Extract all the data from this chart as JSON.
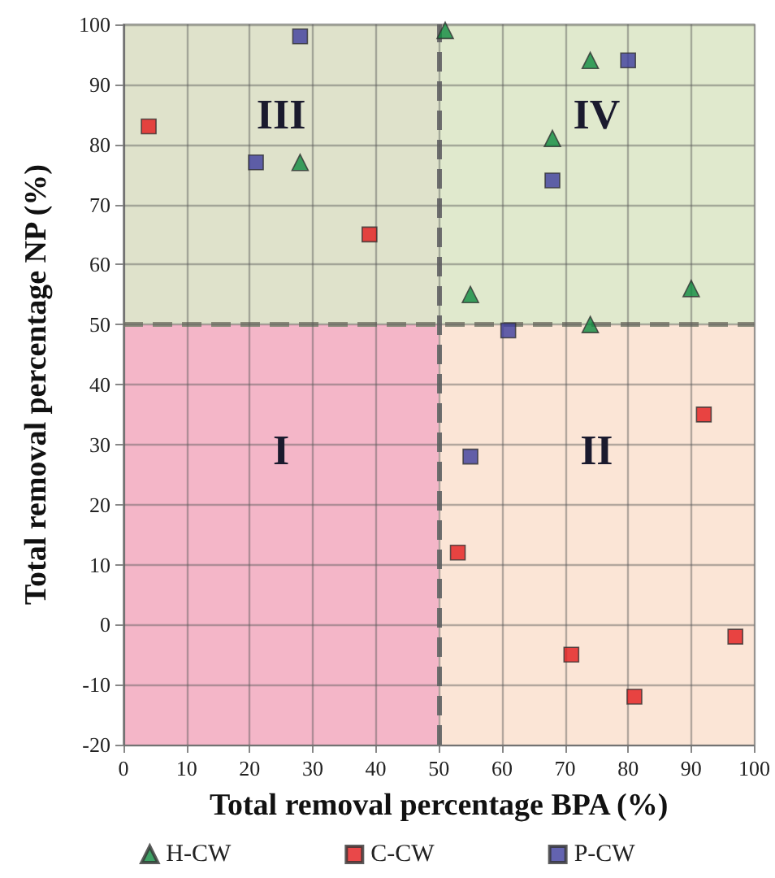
{
  "chart_data": {
    "type": "scatter",
    "xlabel": "Total removal percentage BPA (%)",
    "ylabel": "Total removal percentage NP (%)",
    "xlim": [
      0,
      100
    ],
    "xticks": [
      0,
      10,
      20,
      30,
      40,
      50,
      60,
      70,
      80,
      90,
      100
    ],
    "ylim": [
      -20,
      100
    ],
    "yticks": [
      -20,
      -10,
      0,
      10,
      20,
      30,
      40,
      50,
      60,
      70,
      80,
      90,
      100
    ],
    "grid": true,
    "legend": "bottom",
    "series": [
      {
        "name": "H-CW",
        "color": "#0e8a3e",
        "marker": "triangle",
        "x": [
          51,
          74,
          68,
          55,
          74,
          90,
          28
        ],
        "values": [
          99,
          94,
          81,
          55,
          50,
          56,
          77
        ]
      },
      {
        "name": "C-CW",
        "color": "#e31a1c",
        "marker": "square",
        "x": [
          4,
          39,
          92,
          53,
          71,
          81,
          97
        ],
        "values": [
          83,
          65,
          35,
          12,
          -5,
          -12,
          -2
        ]
      },
      {
        "name": "P-CW",
        "color": "#3c3c9c",
        "marker": "square",
        "x": [
          28,
          21,
          80,
          68,
          61,
          55
        ],
        "values": [
          98,
          77,
          94,
          74,
          49,
          28
        ]
      }
    ],
    "ref_lines": [
      {
        "axis": "x",
        "value": 50,
        "color": "#707070",
        "line_style": "dashed"
      },
      {
        "axis": "y",
        "value": 50,
        "color": "#8a8a7a",
        "line_style": "dashed"
      }
    ],
    "bands": [
      {
        "axis": "x",
        "from": 0,
        "to": 50,
        "color": "#f4b6c8"
      },
      {
        "axis": "x",
        "from": 50,
        "to": 100,
        "color": "#fbe5d6"
      },
      {
        "axis": "y",
        "from": 50,
        "to": 100,
        "color": "#dbeacb"
      }
    ],
    "annotations": [
      "I",
      "II",
      "III",
      "IV"
    ]
  }
}
